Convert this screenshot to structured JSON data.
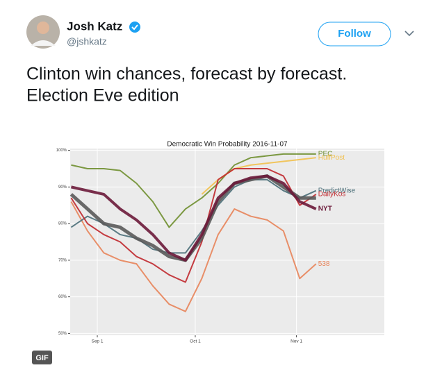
{
  "tweet": {
    "name": "Josh Katz",
    "handle": "@jshkatz",
    "follow": "Follow",
    "text": [
      "Clinton win chances, forecast by forecast.",
      "Election Eve edition"
    ],
    "badge": "GIF"
  },
  "chart_data": {
    "type": "line",
    "title": "Democratic Win Probability 2016-11-07",
    "x": [
      -8,
      -3,
      2,
      7,
      12,
      17,
      22,
      27,
      32,
      37,
      42,
      47,
      52,
      57,
      62,
      67
    ],
    "xlim": [
      -8.3,
      87.9
    ],
    "xticks": [
      {
        "value": 0,
        "label": "Sep 1"
      },
      {
        "value": 30,
        "label": "Oct 1"
      },
      {
        "value": 61,
        "label": "Nov 1"
      }
    ],
    "ylim": [
      49.5,
      100.5
    ],
    "yticks": [
      {
        "value": 50,
        "label": "50%"
      },
      {
        "value": 60,
        "label": "60%"
      },
      {
        "value": 70,
        "label": "70%"
      },
      {
        "value": 80,
        "label": "80%"
      },
      {
        "value": 90,
        "label": "90%"
      },
      {
        "value": 100,
        "label": "100%"
      }
    ],
    "grid": true,
    "series": [
      {
        "name": "PEC",
        "color": "#6f8f2f",
        "width": 2,
        "values": [
          96,
          95,
          95,
          94.5,
          91,
          86,
          79,
          84,
          87,
          91,
          96,
          98,
          98.5,
          99,
          99,
          99
        ]
      },
      {
        "name": "HuffPost",
        "color": "#f2c14e",
        "width": 2,
        "values": [
          null,
          null,
          null,
          null,
          null,
          null,
          null,
          null,
          88,
          92,
          95,
          96,
          96.5,
          97,
          97.5,
          98
        ]
      },
      {
        "name": "538",
        "color": "#e8845a",
        "width": 2,
        "values": [
          86,
          78,
          72,
          70,
          69,
          63,
          58,
          56,
          65,
          77,
          84,
          82,
          81,
          78,
          65,
          69
        ]
      },
      {
        "name": "PredictWise",
        "color": "#4a6e78",
        "width": 2,
        "values": [
          79,
          82,
          80,
          77,
          76,
          73,
          72,
          72,
          78,
          85,
          90,
          92,
          92,
          89,
          87,
          89
        ]
      },
      {
        "name": "DailyKos",
        "color": "#c0282d",
        "width": 2,
        "values": [
          87,
          80,
          77,
          75,
          71,
          69,
          66,
          64,
          75,
          92,
          95,
          95,
          95,
          93,
          85,
          88
        ]
      },
      {
        "color": "#5a5a5a",
        "width": 5,
        "values": [
          88,
          84,
          80,
          79,
          76,
          74,
          71,
          70,
          76,
          86,
          91,
          92,
          93,
          90,
          87,
          87
        ]
      },
      {
        "name": "NYT",
        "color": "#6b1a3a",
        "width": 4,
        "values": [
          90,
          89,
          88,
          84,
          81,
          77,
          72,
          70,
          77,
          87,
          91,
          92.5,
          93,
          91,
          86,
          84
        ]
      }
    ]
  }
}
